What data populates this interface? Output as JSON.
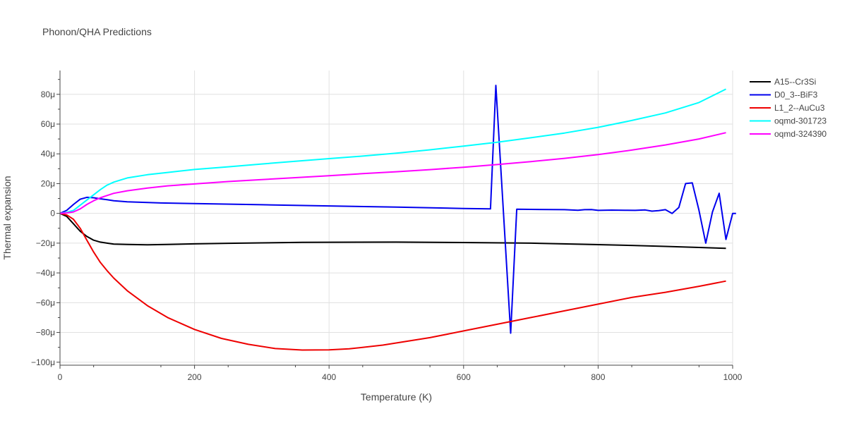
{
  "chart_data": {
    "type": "line",
    "title": "Phonon/QHA Predictions",
    "xlabel": "Temperature (K)",
    "ylabel": "Thermal expansion",
    "xlim": [
      0,
      1000
    ],
    "ylim": [
      -102,
      96
    ],
    "x_ticks": [
      0,
      200,
      400,
      600,
      800,
      1000
    ],
    "y_ticks": [
      -100,
      -80,
      -60,
      -40,
      -20,
      0,
      20,
      40,
      60,
      80
    ],
    "y_tick_labels": [
      "−100μ",
      "−80μ",
      "−60μ",
      "−40μ",
      "−20μ",
      "0",
      "20μ",
      "40μ",
      "60μ",
      "80μ"
    ],
    "grid": true,
    "legend_position": "top-right",
    "series": [
      {
        "name": "A15--Cr3Si",
        "color": "#000000",
        "points": [
          [
            0,
            0
          ],
          [
            10,
            -2
          ],
          [
            20,
            -7
          ],
          [
            30,
            -12
          ],
          [
            40,
            -15.5
          ],
          [
            50,
            -18
          ],
          [
            60,
            -19.3
          ],
          [
            70,
            -20
          ],
          [
            80,
            -20.6
          ],
          [
            100,
            -20.9
          ],
          [
            130,
            -21.1
          ],
          [
            160,
            -20.9
          ],
          [
            200,
            -20.5
          ],
          [
            250,
            -20.1
          ],
          [
            300,
            -19.8
          ],
          [
            360,
            -19.5
          ],
          [
            400,
            -19.4
          ],
          [
            500,
            -19.3
          ],
          [
            600,
            -19.6
          ],
          [
            700,
            -20
          ],
          [
            800,
            -21
          ],
          [
            850,
            -21.5
          ],
          [
            900,
            -22.2
          ],
          [
            950,
            -22.9
          ],
          [
            990,
            -23.5
          ]
        ]
      },
      {
        "name": "D0_3--BiF3",
        "color": "#0000ee",
        "points": [
          [
            0,
            0
          ],
          [
            10,
            2
          ],
          [
            20,
            6
          ],
          [
            30,
            9.5
          ],
          [
            40,
            10.8
          ],
          [
            50,
            10.5
          ],
          [
            60,
            9.8
          ],
          [
            70,
            9.2
          ],
          [
            80,
            8.5
          ],
          [
            100,
            7.8
          ],
          [
            150,
            7
          ],
          [
            200,
            6.6
          ],
          [
            300,
            5.8
          ],
          [
            400,
            5
          ],
          [
            500,
            4.2
          ],
          [
            600,
            3.3
          ],
          [
            640,
            3
          ],
          [
            648,
            86
          ],
          [
            670,
            -80.5
          ],
          [
            679,
            2.8
          ],
          [
            700,
            2.7
          ],
          [
            750,
            2.5
          ],
          [
            770,
            2.1
          ],
          [
            780,
            2.5
          ],
          [
            790,
            2.6
          ],
          [
            800,
            2
          ],
          [
            820,
            2.2
          ],
          [
            840,
            2.1
          ],
          [
            855,
            2
          ],
          [
            870,
            2.3
          ],
          [
            880,
            1.5
          ],
          [
            890,
            1.9
          ],
          [
            900,
            2.5
          ],
          [
            910,
            0
          ],
          [
            920,
            4
          ],
          [
            930,
            20
          ],
          [
            940,
            20.5
          ],
          [
            950,
            2
          ],
          [
            960,
            -20
          ],
          [
            970,
            1
          ],
          [
            980,
            13.5
          ],
          [
            990,
            -17.5
          ],
          [
            1000,
            0
          ],
          [
            1005,
            0
          ]
        ]
      },
      {
        "name": "L1_2--AuCu3",
        "color": "#ee0000",
        "points": [
          [
            0,
            0
          ],
          [
            10,
            -1
          ],
          [
            20,
            -4
          ],
          [
            30,
            -10
          ],
          [
            40,
            -18
          ],
          [
            50,
            -26
          ],
          [
            60,
            -33
          ],
          [
            70,
            -38.5
          ],
          [
            80,
            -43.5
          ],
          [
            100,
            -52
          ],
          [
            130,
            -62
          ],
          [
            160,
            -70
          ],
          [
            200,
            -78
          ],
          [
            240,
            -84
          ],
          [
            280,
            -88
          ],
          [
            320,
            -90.8
          ],
          [
            360,
            -91.8
          ],
          [
            400,
            -91.7
          ],
          [
            430,
            -91
          ],
          [
            480,
            -88.5
          ],
          [
            550,
            -83.5
          ],
          [
            600,
            -79
          ],
          [
            650,
            -74.5
          ],
          [
            700,
            -70
          ],
          [
            750,
            -65.5
          ],
          [
            800,
            -61
          ],
          [
            850,
            -56.5
          ],
          [
            900,
            -53
          ],
          [
            950,
            -49
          ],
          [
            990,
            -45.5
          ]
        ]
      },
      {
        "name": "oqmd-301723",
        "color": "#00ffff",
        "points": [
          [
            0,
            0
          ],
          [
            10,
            0.7
          ],
          [
            20,
            2
          ],
          [
            30,
            5.5
          ],
          [
            40,
            9
          ],
          [
            50,
            12.5
          ],
          [
            60,
            16
          ],
          [
            70,
            19
          ],
          [
            80,
            21
          ],
          [
            100,
            23.8
          ],
          [
            130,
            26
          ],
          [
            160,
            27.5
          ],
          [
            200,
            29.5
          ],
          [
            250,
            31.3
          ],
          [
            300,
            33.2
          ],
          [
            350,
            35
          ],
          [
            400,
            36.8
          ],
          [
            450,
            38.5
          ],
          [
            500,
            40.5
          ],
          [
            550,
            42.7
          ],
          [
            600,
            45.2
          ],
          [
            650,
            47.8
          ],
          [
            700,
            50.8
          ],
          [
            750,
            54
          ],
          [
            800,
            57.8
          ],
          [
            850,
            62.4
          ],
          [
            900,
            67.5
          ],
          [
            950,
            74.5
          ],
          [
            990,
            83.5
          ]
        ]
      },
      {
        "name": "oqmd-324390",
        "color": "#ff00ff",
        "points": [
          [
            0,
            0
          ],
          [
            10,
            0.3
          ],
          [
            20,
            1
          ],
          [
            30,
            3
          ],
          [
            40,
            6
          ],
          [
            50,
            8.5
          ],
          [
            60,
            10.5
          ],
          [
            70,
            12
          ],
          [
            80,
            13.5
          ],
          [
            100,
            15.2
          ],
          [
            130,
            17
          ],
          [
            160,
            18.5
          ],
          [
            200,
            19.8
          ],
          [
            250,
            21.4
          ],
          [
            300,
            22.7
          ],
          [
            350,
            24
          ],
          [
            400,
            25.3
          ],
          [
            450,
            26.7
          ],
          [
            500,
            28
          ],
          [
            550,
            29.4
          ],
          [
            600,
            31
          ],
          [
            650,
            32.8
          ],
          [
            700,
            34.8
          ],
          [
            750,
            37
          ],
          [
            800,
            39.5
          ],
          [
            850,
            42.5
          ],
          [
            900,
            46
          ],
          [
            950,
            50
          ],
          [
            990,
            54.2
          ]
        ]
      }
    ]
  }
}
